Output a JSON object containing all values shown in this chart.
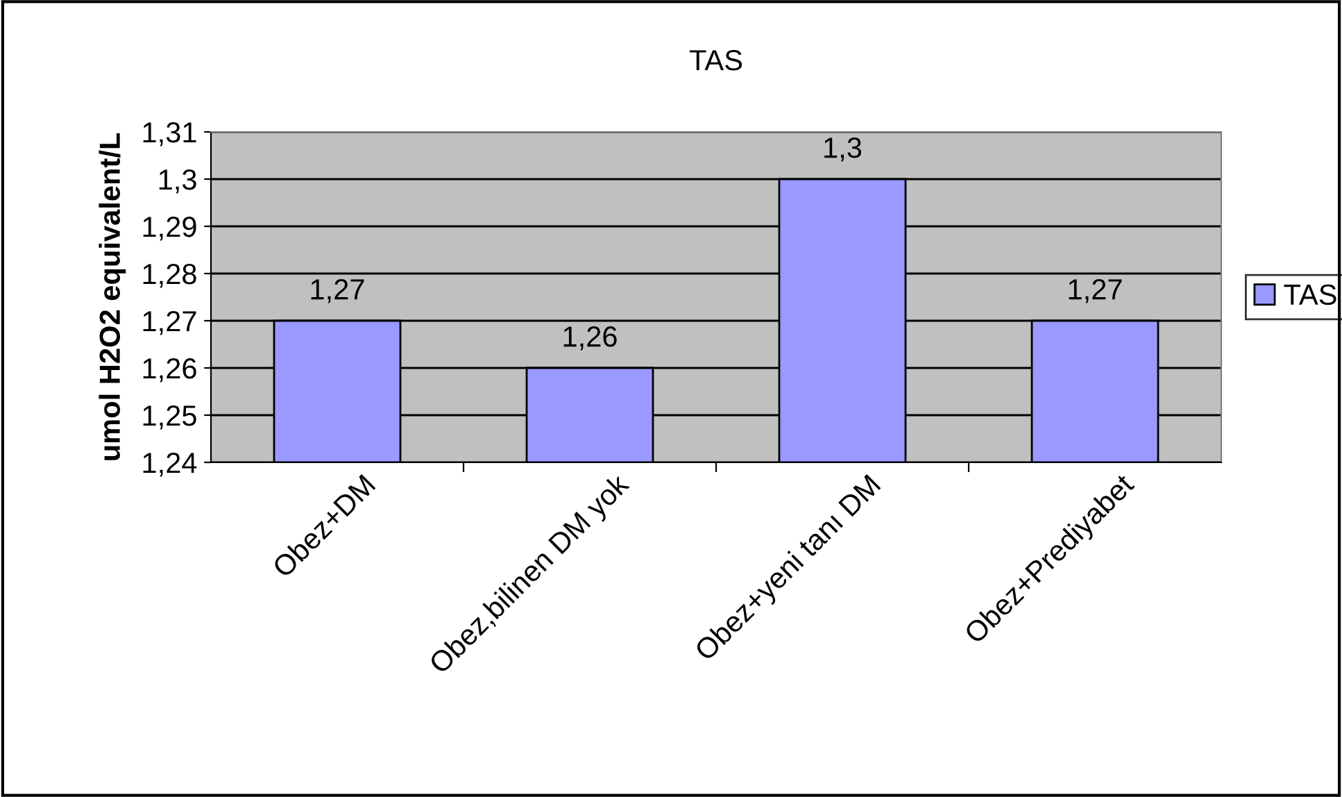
{
  "chart_data": {
    "type": "bar",
    "title": "TAS",
    "ylabel": "umol H2O2 equivalent/L",
    "categories": [
      "Obez+DM",
      "Obez,bilinen DM yok",
      "Obez+yeni tanı DM",
      "Obez+Prediyabet"
    ],
    "series": [
      {
        "name": "TAS",
        "color": "#9999ff",
        "values": [
          1.27,
          1.26,
          1.3,
          1.27
        ],
        "value_labels": [
          "1,27",
          "1,26",
          "1,3",
          "1,27"
        ]
      }
    ],
    "ylim": [
      1.24,
      1.31
    ],
    "yticks": [
      {
        "value": 1.24,
        "label": "1,24"
      },
      {
        "value": 1.25,
        "label": "1,25"
      },
      {
        "value": 1.26,
        "label": "1,26"
      },
      {
        "value": 1.27,
        "label": "1,27"
      },
      {
        "value": 1.28,
        "label": "1,28"
      },
      {
        "value": 1.29,
        "label": "1,29"
      },
      {
        "value": 1.3,
        "label": "1,3"
      },
      {
        "value": 1.31,
        "label": "1,31"
      }
    ],
    "grid": "y",
    "legend": "right"
  }
}
